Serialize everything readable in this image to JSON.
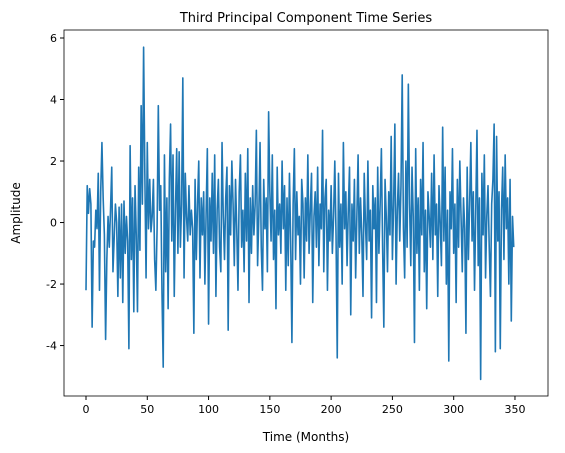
{
  "chart_data": {
    "type": "line",
    "title": "Third Principal Component Time Series",
    "x_label": "Time (Months)",
    "y_label": "Amplitude",
    "color": "#1f77b4",
    "xlim": [
      -17.95,
      376.95
    ],
    "ylim": [
      -5.64,
      6.26
    ],
    "xticks": [
      0,
      50,
      100,
      150,
      200,
      250,
      300,
      350
    ],
    "yticks": [
      -4,
      -2,
      0,
      2,
      4,
      6
    ],
    "values": [
      -2.2,
      1.2,
      0.3,
      1.1,
      0.6,
      -3.4,
      -0.6,
      -0.8,
      0.4,
      -0.2,
      1.6,
      -2.2,
      1.0,
      2.6,
      0.8,
      -0.4,
      -3.8,
      -1.2,
      0.2,
      -0.8,
      0.4,
      1.8,
      -1.6,
      -0.5,
      0.6,
      0.0,
      -2.4,
      0.5,
      -1.8,
      0.6,
      -2.6,
      0.7,
      -1.0,
      0.2,
      -0.6,
      -4.1,
      2.5,
      -1.2,
      0.8,
      -2.9,
      1.2,
      -0.4,
      -2.9,
      1.8,
      -0.9,
      3.8,
      0.6,
      5.7,
      1.6,
      -1.8,
      2.6,
      -0.2,
      1.4,
      -0.3,
      0.2,
      1.4,
      -1.2,
      -2.2,
      -0.2,
      3.8,
      0.4,
      1.2,
      -2.3,
      -4.7,
      2.2,
      -1.6,
      0.8,
      -2.8,
      1.4,
      3.2,
      -0.6,
      2.2,
      -2.4,
      0.4,
      2.4,
      -1.0,
      2.3,
      -0.8,
      0.6,
      4.7,
      -1.8,
      1.6,
      0.2,
      -0.6,
      1.2,
      -0.4,
      0.4,
      -0.2,
      -3.6,
      1.4,
      -1.2,
      0.6,
      2.0,
      -1.8,
      0.8,
      -0.4,
      1.0,
      -2.0,
      0.3,
      2.4,
      -3.3,
      0.8,
      -0.6,
      1.6,
      -1.0,
      2.2,
      -2.4,
      0.4,
      1.4,
      -0.8,
      -1.6,
      2.6,
      0.2,
      -1.2,
      0.8,
      1.8,
      -3.5,
      1.2,
      -0.4,
      2.0,
      0.6,
      -1.4,
      1.4,
      -0.2,
      -2.2,
      1.0,
      2.2,
      -0.8,
      0.4,
      -1.6,
      1.6,
      -0.6,
      2.4,
      -2.6,
      0.8,
      -1.0,
      1.2,
      -0.4,
      0.6,
      3.0,
      -1.4,
      0.2,
      2.6,
      -0.8,
      -2.2,
      1.4,
      -0.2,
      0.8,
      -1.6,
      3.6,
      1.0,
      -0.6,
      2.2,
      -1.2,
      0.4,
      -2.8,
      1.8,
      -0.4,
      0.6,
      -1.0,
      2.0,
      -0.2,
      1.2,
      -2.2,
      0.8,
      -1.4,
      1.6,
      -0.6,
      -3.9,
      0.6,
      2.4,
      -1.2,
      1.0,
      -0.4,
      0.2,
      -2.0,
      1.4,
      0.6,
      -1.8,
      0.8,
      -0.6,
      2.2,
      -1.0,
      0.4,
      1.6,
      -2.6,
      0.2,
      1.0,
      -0.8,
      1.8,
      -1.4,
      0.6,
      -0.2,
      3.0,
      -1.6,
      0.8,
      1.4,
      -2.2,
      0.4,
      -0.6,
      1.2,
      -1.0,
      0.2,
      2.0,
      -0.4,
      -4.4,
      1.6,
      -0.8,
      0.6,
      -2.0,
      2.6,
      -0.2,
      1.0,
      -1.4,
      0.4,
      1.8,
      -3.0,
      0.6,
      -0.6,
      1.4,
      -1.8,
      0.2,
      2.2,
      -1.0,
      0.8,
      -0.4,
      -2.4,
      1.6,
      0.0,
      -1.2,
      2.0,
      -0.6,
      0.4,
      -3.1,
      1.2,
      -0.2,
      0.8,
      -2.6,
      1.8,
      -1.0,
      0.6,
      2.4,
      -0.8,
      -3.4,
      1.4,
      0.2,
      -1.6,
      1.0,
      -0.4,
      2.8,
      -1.2,
      0.6,
      3.2,
      -2.0,
      0.4,
      1.6,
      -0.6,
      1.2,
      4.8,
      -0.2,
      -1.8,
      2.0,
      -0.8,
      4.5,
      0.6,
      -1.4,
      1.8,
      0.2,
      -3.9,
      2.4,
      -1.0,
      0.8,
      -2.2,
      1.4,
      -0.4,
      2.6,
      -1.6,
      0.4,
      -2.8,
      1.0,
      0.2,
      -0.8,
      1.6,
      -1.2,
      2.2,
      -0.4,
      0.6,
      -2.4,
      1.2,
      0.0,
      -1.4,
      3.1,
      -0.6,
      1.8,
      -2.0,
      0.4,
      -4.5,
      1.0,
      -0.2,
      2.4,
      -1.0,
      0.6,
      -2.6,
      1.4,
      -0.8,
      2.0,
      0.2,
      -1.6,
      0.8,
      -0.2,
      -3.6,
      1.8,
      -1.2,
      0.6,
      2.6,
      -0.6,
      1.0,
      -2.2,
      0.4,
      3.0,
      -1.4,
      0.8,
      -5.1,
      1.6,
      -0.4,
      2.2,
      -1.8,
      0.2,
      1.2,
      -0.8,
      -2.4,
      0.6,
      1.4,
      3.2,
      -4.2,
      2.8,
      -0.6,
      1.0,
      -4.1,
      0.4,
      1.8,
      -1.2,
      2.2,
      -0.2,
      0.8,
      -2.0,
      1.4,
      -3.2,
      0.2,
      -0.8
    ]
  }
}
